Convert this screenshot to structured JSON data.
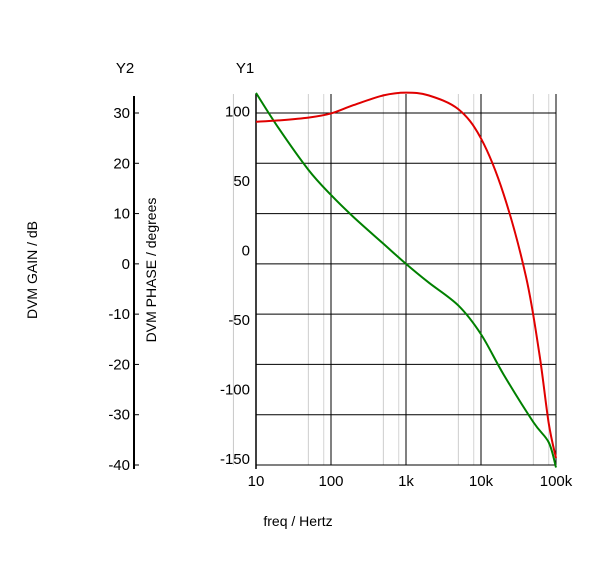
{
  "chart_data": {
    "type": "line",
    "x_scale": "log",
    "xlabel": "freq / Hertz",
    "x_ticks": [
      10,
      100,
      1000,
      10000,
      100000
    ],
    "x_tick_labels": [
      "10",
      "100",
      "1k",
      "10k",
      "100k"
    ],
    "xlim": [
      10,
      100000
    ],
    "axes": {
      "y2": {
        "name": "Y2",
        "label": "DVM GAIN / dB",
        "ylim": [
          -40,
          30
        ],
        "ticks": [
          30,
          20,
          10,
          0,
          -10,
          -20,
          -30,
          -40
        ]
      },
      "y1": {
        "name": "Y1",
        "label": "DVM PHASE / degrees",
        "ylim": [
          -155,
          112
        ],
        "ticks": [
          100,
          50,
          0,
          -50,
          -100,
          -150
        ]
      }
    },
    "grid": true,
    "series": [
      {
        "axis": "y2",
        "color": "#008000",
        "points": [
          [
            10,
            34
          ],
          [
            20,
            27
          ],
          [
            50,
            18.7
          ],
          [
            100,
            13.7
          ],
          [
            200,
            9.3
          ],
          [
            500,
            4
          ],
          [
            1000,
            0
          ],
          [
            2000,
            -3.7
          ],
          [
            5000,
            -8.3
          ],
          [
            10000,
            -14
          ],
          [
            20000,
            -22
          ],
          [
            50000,
            -31.5
          ],
          [
            80000,
            -35.5
          ],
          [
            100000,
            -40.5
          ]
        ]
      },
      {
        "axis": "y1",
        "color": "#e00000",
        "points": [
          [
            10,
            92
          ],
          [
            20,
            93
          ],
          [
            50,
            95
          ],
          [
            100,
            98
          ],
          [
            200,
            104
          ],
          [
            500,
            111
          ],
          [
            1000,
            113
          ],
          [
            2000,
            111
          ],
          [
            5000,
            101
          ],
          [
            10000,
            80
          ],
          [
            20000,
            40
          ],
          [
            40000,
            -20
          ],
          [
            60000,
            -75
          ],
          [
            80000,
            -125
          ],
          [
            100000,
            -150
          ]
        ]
      }
    ]
  }
}
